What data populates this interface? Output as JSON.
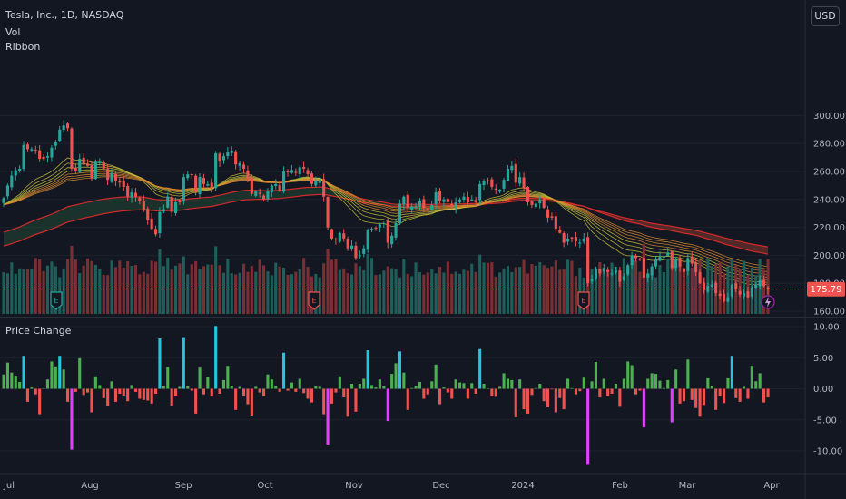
{
  "header": {
    "symbol_line": "Tesla, Inc., 1D, NASDAQ",
    "vol_label": "Vol",
    "ribbon_label": "Ribbon",
    "currency": "USD"
  },
  "subpane": {
    "title": "Price Change"
  },
  "last_price_label": "175.79",
  "colors": {
    "background": "#131722",
    "up": "#26a69a",
    "down": "#ef5350",
    "vol_up": "#1f5f5a",
    "vol_down": "#7c2f32",
    "ribbon_fast": "#c8c13a",
    "ribbon_slow": "#d12a2a",
    "change_up": "#4caf50",
    "change_down": "#ef5350",
    "change_big_up": "#26c6da",
    "change_big_down": "#e040fb"
  },
  "icons": {
    "earnings": "earnings-marker-icon",
    "dividend": "lightning-icon"
  },
  "chart_data": [
    {
      "type": "candlestick",
      "title": "Tesla, Inc., 1D, NASDAQ",
      "x": [
        "2023-06-26",
        "2023-06-27",
        "2023-06-28",
        "2023-06-29",
        "2023-06-30",
        "2023-07-03",
        "2023-07-05",
        "2023-07-06",
        "2023-07-07",
        "2023-07-10",
        "2023-07-11",
        "2023-07-12",
        "2023-07-13",
        "2023-07-14",
        "2023-07-17",
        "2023-07-18",
        "2023-07-19",
        "2023-07-20",
        "2023-07-21",
        "2023-07-24",
        "2023-07-25",
        "2023-07-26",
        "2023-07-27",
        "2023-07-28",
        "2023-07-31",
        "2023-08-01",
        "2023-08-02",
        "2023-08-03",
        "2023-08-04",
        "2023-08-07",
        "2023-08-08",
        "2023-08-09",
        "2023-08-10",
        "2023-08-11",
        "2023-08-14",
        "2023-08-15",
        "2023-08-16",
        "2023-08-17",
        "2023-08-18",
        "2023-08-21",
        "2023-08-22",
        "2023-08-23",
        "2023-08-24",
        "2023-08-25",
        "2023-08-28",
        "2023-08-29",
        "2023-08-30",
        "2023-08-31",
        "2023-09-01",
        "2023-09-05",
        "2023-09-06",
        "2023-09-07",
        "2023-09-08",
        "2023-09-11",
        "2023-09-12",
        "2023-09-13",
        "2023-09-14",
        "2023-09-15",
        "2023-09-18",
        "2023-09-19",
        "2023-09-20",
        "2023-09-21",
        "2023-09-22",
        "2023-09-25",
        "2023-09-26",
        "2023-09-27",
        "2023-09-28",
        "2023-09-29",
        "2023-10-02",
        "2023-10-03",
        "2023-10-04",
        "2023-10-05",
        "2023-10-06",
        "2023-10-09",
        "2023-10-10",
        "2023-10-11",
        "2023-10-12",
        "2023-10-13",
        "2023-10-16",
        "2023-10-17",
        "2023-10-18",
        "2023-10-19",
        "2023-10-20",
        "2023-10-23",
        "2023-10-24",
        "2023-10-25",
        "2023-10-26",
        "2023-10-27",
        "2023-10-30",
        "2023-10-31",
        "2023-11-01",
        "2023-11-02",
        "2023-11-03",
        "2023-11-06",
        "2023-11-07",
        "2023-11-08",
        "2023-11-09",
        "2023-11-10",
        "2023-11-13",
        "2023-11-14",
        "2023-11-15",
        "2023-11-16",
        "2023-11-17",
        "2023-11-20",
        "2023-11-21",
        "2023-11-22",
        "2023-11-24",
        "2023-11-27",
        "2023-11-28",
        "2023-11-29",
        "2023-11-30",
        "2023-12-01",
        "2023-12-04",
        "2023-12-05",
        "2023-12-06",
        "2023-12-07",
        "2023-12-08",
        "2023-12-11",
        "2023-12-12",
        "2023-12-13",
        "2023-12-14",
        "2023-12-15",
        "2023-12-18",
        "2023-12-19",
        "2023-12-20",
        "2023-12-21",
        "2023-12-22",
        "2023-12-26",
        "2023-12-27",
        "2023-12-28",
        "2023-12-29",
        "2024-01-02",
        "2024-01-03",
        "2024-01-04",
        "2024-01-05",
        "2024-01-08",
        "2024-01-09",
        "2024-01-10",
        "2024-01-11",
        "2024-01-12",
        "2024-01-16",
        "2024-01-17",
        "2024-01-18",
        "2024-01-19",
        "2024-01-22",
        "2024-01-23",
        "2024-01-24",
        "2024-01-25",
        "2024-01-26",
        "2024-01-29",
        "2024-01-30",
        "2024-01-31",
        "2024-02-01",
        "2024-02-02",
        "2024-02-05",
        "2024-02-06",
        "2024-02-07",
        "2024-02-08",
        "2024-02-09",
        "2024-02-12",
        "2024-02-13",
        "2024-02-14",
        "2024-02-15",
        "2024-02-16",
        "2024-02-20",
        "2024-02-21",
        "2024-02-22",
        "2024-02-23",
        "2024-02-26",
        "2024-02-27",
        "2024-02-28",
        "2024-02-29",
        "2024-03-01",
        "2024-03-04",
        "2024-03-05",
        "2024-03-06",
        "2024-03-07",
        "2024-03-08",
        "2024-03-11",
        "2024-03-12",
        "2024-03-13",
        "2024-03-14",
        "2024-03-15",
        "2024-03-18",
        "2024-03-19",
        "2024-03-20",
        "2024-03-21",
        "2024-03-22",
        "2024-03-25",
        "2024-03-26",
        "2024-03-27",
        "2024-03-28"
      ],
      "close": [
        241,
        250,
        257,
        261,
        262,
        279,
        276,
        276,
        275,
        269,
        269,
        271,
        277,
        281,
        290,
        293,
        291,
        262,
        260,
        269,
        265,
        264,
        255,
        267,
        267,
        262,
        254,
        259,
        253,
        252,
        249,
        242,
        245,
        242,
        239,
        232,
        225,
        219,
        215,
        231,
        233,
        242,
        231,
        238,
        238,
        256,
        258,
        258,
        245,
        256,
        251,
        251,
        248,
        273,
        267,
        271,
        274,
        275,
        265,
        266,
        262,
        255,
        244,
        246,
        244,
        240,
        246,
        250,
        251,
        246,
        260,
        260,
        261,
        259,
        263,
        262,
        258,
        251,
        253,
        254,
        242,
        220,
        212,
        211,
        216,
        212,
        205,
        207,
        198,
        200,
        205,
        218,
        219,
        219,
        222,
        223,
        209,
        214,
        223,
        237,
        242,
        234,
        235,
        235,
        239,
        234,
        232,
        236,
        245,
        239,
        240,
        238,
        235,
        238,
        240,
        242,
        238,
        240,
        238,
        251,
        253,
        253,
        249,
        247,
        247,
        254,
        262,
        264,
        252,
        256,
        248,
        238,
        236,
        237,
        240,
        234,
        227,
        227,
        219,
        216,
        209,
        212,
        212,
        210,
        209,
        212,
        180,
        183,
        190,
        187,
        191,
        188,
        187,
        189,
        181,
        185,
        193,
        200,
        198,
        197,
        184,
        187,
        192,
        197,
        199,
        199,
        202,
        191,
        197,
        192,
        188,
        198,
        194,
        188,
        180,
        175,
        178,
        179,
        173,
        171,
        167,
        170,
        179,
        176,
        172,
        173,
        170,
        177,
        179,
        182,
        178,
        176
      ]
    },
    {
      "type": "bar",
      "title": "Price Change",
      "ylim": [
        -12,
        11
      ],
      "values": [
        2.3,
        4.2,
        2.6,
        2.1,
        1.1,
        5.3,
        -2.1,
        0.2,
        -0.9,
        -4.1,
        0.0,
        1.5,
        4.4,
        3.6,
        5.3,
        3.1,
        -2.1,
        -9.8,
        -0.5,
        4.9,
        -1.0,
        -0.6,
        -3.8,
        2.0,
        0.6,
        -1.5,
        -2.8,
        1.2,
        -2.1,
        -0.8,
        -1.1,
        -2.0,
        0.6,
        -0.5,
        -1.6,
        -1.8,
        -1.9,
        -2.4,
        -0.8,
        8.1,
        0.4,
        3.5,
        -2.7,
        -1.1,
        0.3,
        8.3,
        0.5,
        -0.3,
        -4.0,
        3.4,
        -0.9,
        1.9,
        -1.2,
        10.1,
        -0.8,
        1.4,
        3.7,
        0.5,
        -3.4,
        0.3,
        -1.2,
        -2.5,
        -4.3,
        0.3,
        -0.6,
        -1.2,
        2.3,
        1.5,
        0.5,
        -0.5,
        5.8,
        -0.3,
        1.0,
        -0.5,
        1.6,
        -0.7,
        -1.6,
        -2.2,
        0.4,
        0.3,
        -4.1,
        -9.0,
        -2.4,
        -0.6,
        2.0,
        -1.4,
        -4.5,
        0.8,
        -3.7,
        0.8,
        1.6,
        6.2,
        0.6,
        0.2,
        1.5,
        0.4,
        -5.2,
        2.4,
        4.1,
        6.0,
        2.6,
        -3.4,
        0.1,
        0.5,
        1.1,
        -1.6,
        -0.9,
        1.2,
        3.9,
        -2.5,
        0.2,
        -0.6,
        -1.6,
        1.5,
        1.0,
        0.9,
        -1.6,
        0.9,
        -0.8,
        6.4,
        0.8,
        0.0,
        -1.2,
        -1.3,
        0.3,
        2.5,
        1.6,
        1.4,
        -4.6,
        1.5,
        -3.3,
        -4.0,
        -1.0,
        0.1,
        0.8,
        -2.0,
        -3.0,
        -0.1,
        -3.8,
        -1.5,
        -3.3,
        1.6,
        0.1,
        -0.9,
        -0.4,
        1.8,
        -12.1,
        1.2,
        4.3,
        -1.4,
        1.6,
        -1.2,
        -0.8,
        0.8,
        -2.9,
        1.6,
        4.4,
        3.8,
        -0.9,
        -0.3,
        -6.2,
        1.6,
        2.5,
        2.4,
        1.3,
        0.1,
        1.4,
        -5.4,
        3.1,
        -2.4,
        -2.0,
        4.7,
        -1.8,
        -3.1,
        -4.5,
        -2.6,
        1.7,
        0.5,
        -3.4,
        -1.2,
        -2.3,
        1.7,
        5.3,
        -1.5,
        -2.1,
        0.3,
        -1.6,
        3.7,
        1.2,
        2.5,
        -2.2,
        -1.4
      ]
    }
  ],
  "axes": {
    "price_ticks": [
      "300.00",
      "280.00",
      "260.00",
      "240.00",
      "220.00",
      "200.00",
      "180.00",
      "160.00"
    ],
    "change_ticks": [
      "10.00",
      "5.00",
      "0.00",
      "-5.00",
      "-10.00"
    ],
    "time_ticks": [
      "Jul",
      "Aug",
      "Sep",
      "Oct",
      "Nov",
      "Dec",
      "2024",
      "Feb",
      "Mar",
      "Apr"
    ]
  }
}
